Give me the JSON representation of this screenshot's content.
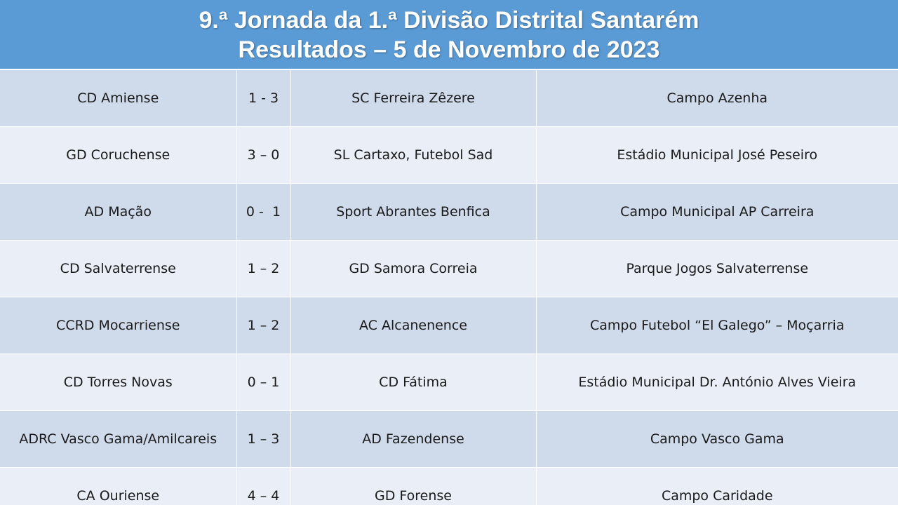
{
  "header": {
    "title_line1": "9.ª Jornada da 1.ª Divisão Distrital Santarém",
    "title_line2": "Resultados – 5 de Novembro de 2023"
  },
  "colors": {
    "header_bg": "#5b9bd5",
    "row_dark": "#cfdaeb",
    "row_light": "#e9eef7"
  },
  "matches": [
    {
      "home": "CD Amiense",
      "score": "1 - 3",
      "away": "SC Ferreira Zêzere",
      "venue": "Campo Azenha"
    },
    {
      "home": "GD Coruchense",
      "score": "3 – 0",
      "away": "SL Cartaxo, Futebol Sad",
      "venue": "Estádio Municipal José Peseiro"
    },
    {
      "home": "AD Mação",
      "score": "0 -  1",
      "away": "Sport Abrantes Benfica",
      "venue": "Campo Municipal AP Carreira"
    },
    {
      "home": "CD Salvaterrense",
      "score": "1 – 2",
      "away": "GD Samora Correia",
      "venue": "Parque Jogos Salvaterrense"
    },
    {
      "home": "CCRD Mocarriense",
      "score": "1 – 2",
      "away": "AC Alcanenence",
      "venue": "Campo Futebol “El Galego” – Moçarria"
    },
    {
      "home": "CD Torres Novas",
      "score": "0 – 1",
      "away": "CD Fátima",
      "venue": "Estádio Municipal Dr. António Alves Vieira"
    },
    {
      "home": "ADRC Vasco Gama/Amilcareis",
      "score": "1 – 3",
      "away": "AD Fazendense",
      "venue": "Campo Vasco Gama"
    },
    {
      "home": "CA Ouriense",
      "score": "4 – 4",
      "away": "GD Forense",
      "venue": "Campo Caridade"
    }
  ]
}
